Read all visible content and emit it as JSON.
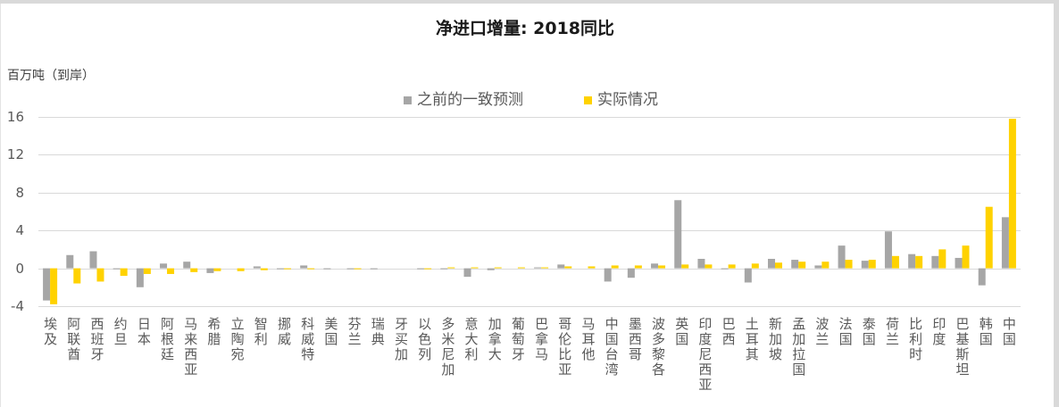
{
  "chart_data": {
    "type": "bar",
    "title": "净进口增量: 2018同比",
    "xlabel": "",
    "ylabel": "百万吨（到岸）",
    "ylim": [
      -4,
      16
    ],
    "yticks": [
      16,
      12,
      8,
      4,
      0,
      -4
    ],
    "grid": true,
    "legend_position": "top-center",
    "categories": [
      "埃及",
      "阿联酋",
      "西班牙",
      "约旦",
      "日本",
      "阿根廷",
      "马来西亚",
      "希腊",
      "立陶宛",
      "智利",
      "挪威",
      "科威特",
      "美国",
      "芬兰",
      "瑞典",
      "牙买加",
      "以色列",
      "多米尼加",
      "意大利",
      "加拿大",
      "葡萄牙",
      "巴拿马",
      "哥伦比亚",
      "马耳他",
      "中国台湾",
      "墨西哥",
      "波多黎各",
      "英国",
      "印度尼西亚",
      "巴西",
      "土耳其",
      "新加坡",
      "孟加拉国",
      "波兰",
      "法国",
      "泰国",
      "荷兰",
      "比利时",
      "印度",
      "巴基斯坦",
      "韩国",
      "中国"
    ],
    "series": [
      {
        "name": "之前的一致预测",
        "color": "#a6a6a6",
        "values": [
          -3.4,
          1.4,
          1.8,
          -0.1,
          -2.0,
          0.5,
          0.7,
          -0.5,
          0.0,
          0.2,
          -0.1,
          0.3,
          -0.1,
          -0.1,
          -0.1,
          0.0,
          -0.1,
          -0.1,
          -0.9,
          -0.2,
          0.0,
          0.1,
          0.4,
          0.0,
          -1.4,
          -1.0,
          0.5,
          7.2,
          1.0,
          -0.1,
          -1.5,
          1.0,
          0.9,
          0.3,
          2.4,
          0.8,
          3.9,
          1.5,
          1.3,
          1.1,
          -1.8,
          5.4
        ]
      },
      {
        "name": "实际情况",
        "color": "#ffd200",
        "values": [
          -3.8,
          -1.6,
          -1.4,
          -0.8,
          -0.6,
          -0.6,
          -0.4,
          -0.3,
          -0.3,
          -0.2,
          -0.1,
          -0.1,
          0.0,
          -0.1,
          0.0,
          0.0,
          -0.1,
          0.1,
          0.1,
          0.1,
          0.1,
          0.1,
          0.2,
          0.2,
          0.3,
          0.3,
          0.3,
          0.4,
          0.4,
          0.4,
          0.5,
          0.6,
          0.7,
          0.7,
          0.9,
          0.9,
          1.3,
          1.3,
          2.0,
          2.4,
          6.5,
          15.8
        ]
      }
    ]
  }
}
